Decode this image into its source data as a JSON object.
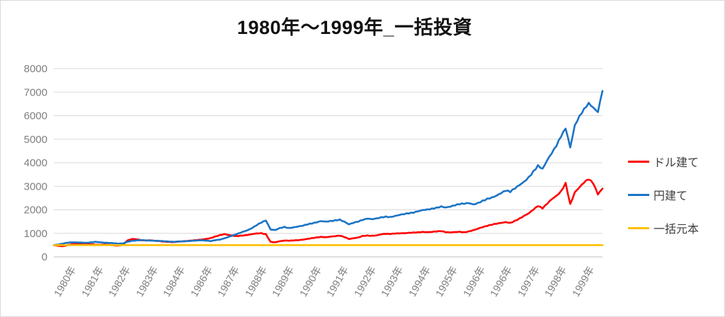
{
  "title": "1980年～1999年_一括投資",
  "colors": {
    "background": "#ffffff",
    "border": "#d9d9d9",
    "grid": "#d9d9d9",
    "axis_line": "#bfbfbf",
    "axis_text": "#7f7f7f",
    "title_text": "#111111",
    "legend_text": "#404040",
    "series_dollar": "#ff0000",
    "series_yen": "#1b74c5",
    "series_principal": "#ffc000"
  },
  "legend": {
    "items": [
      {
        "label": "ドル建て",
        "color": "#ff0000"
      },
      {
        "label": "円建て",
        "color": "#1b74c5"
      },
      {
        "label": "一括元本",
        "color": "#ffc000"
      }
    ]
  },
  "chart_data": {
    "type": "line",
    "title": "1980年～1999年_一括投資",
    "xlabel": "",
    "ylabel": "",
    "ylim": [
      0,
      8000
    ],
    "y_ticks": [
      0,
      1000,
      2000,
      3000,
      4000,
      5000,
      6000,
      7000,
      8000
    ],
    "x_tick_labels": [
      "1980年",
      "1981年",
      "1982年",
      "1983年",
      "1984年",
      "1986年",
      "1987年",
      "1988年",
      "1989年",
      "1990年",
      "1991年",
      "1992年",
      "1993年",
      "1994年",
      "1995年",
      "1996年",
      "1996年",
      "1997年",
      "1998年",
      "1999年"
    ],
    "x_range": "1980 to 1999, points every 2 months",
    "grid": "horizontal-only",
    "legend_position": "right",
    "series": [
      {
        "name": "ドル建て",
        "color": "#ff0000",
        "values": [
          500,
          465,
          455,
          505,
          545,
          560,
          550,
          555,
          535,
          515,
          505,
          525,
          510,
          490,
          480,
          520,
          700,
          760,
          740,
          700,
          690,
          700,
          680,
          670,
          650,
          640,
          630,
          650,
          660,
          670,
          690,
          710,
          730,
          760,
          800,
          870,
          930,
          970,
          930,
          890,
          880,
          900,
          925,
          965,
          1000,
          1010,
          970,
          645,
          620,
          665,
          690,
          680,
          695,
          705,
          730,
          765,
          800,
          830,
          855,
          835,
          860,
          875,
          895,
          840,
          755,
          790,
          825,
          895,
          910,
          900,
          915,
          955,
          975,
          965,
          985,
          995,
          1005,
          1025,
          1040,
          1050,
          1065,
          1050,
          1060,
          1075,
          1090,
          1045,
          1035,
          1055,
          1070,
          1050,
          1090,
          1140,
          1200,
          1260,
          1310,
          1360,
          1400,
          1440,
          1480,
          1450,
          1540,
          1640,
          1750,
          1850,
          2000,
          2150,
          2050,
          2250,
          2450,
          2600,
          2800,
          3150,
          2250,
          2750,
          2950,
          3150,
          3280,
          3100,
          2650,
          2900
        ]
      },
      {
        "name": "円建て",
        "color": "#1b74c5",
        "values": [
          500,
          520,
          560,
          600,
          620,
          615,
          610,
          600,
          620,
          640,
          620,
          600,
          590,
          575,
          560,
          570,
          640,
          690,
          700,
          720,
          700,
          690,
          680,
          670,
          660,
          650,
          640,
          655,
          665,
          675,
          685,
          695,
          705,
          685,
          665,
          705,
          730,
          790,
          860,
          930,
          1000,
          1070,
          1130,
          1220,
          1340,
          1450,
          1540,
          1160,
          1140,
          1230,
          1280,
          1230,
          1260,
          1290,
          1320,
          1370,
          1410,
          1460,
          1520,
          1500,
          1530,
          1560,
          1590,
          1500,
          1380,
          1440,
          1490,
          1560,
          1620,
          1600,
          1640,
          1690,
          1720,
          1700,
          1740,
          1780,
          1810,
          1840,
          1870,
          1930,
          1990,
          2020,
          2060,
          2100,
          2150,
          2100,
          2130,
          2180,
          2230,
          2250,
          2280,
          2230,
          2300,
          2400,
          2480,
          2530,
          2600,
          2700,
          2800,
          2750,
          2900,
          3050,
          3200,
          3400,
          3650,
          3900,
          3750,
          4100,
          4400,
          4700,
          5100,
          5450,
          4650,
          5600,
          6000,
          6300,
          6550,
          6350,
          6150,
          7050
        ]
      },
      {
        "name": "一括元本",
        "color": "#ffc000",
        "values": [
          500,
          500
        ]
      }
    ]
  }
}
